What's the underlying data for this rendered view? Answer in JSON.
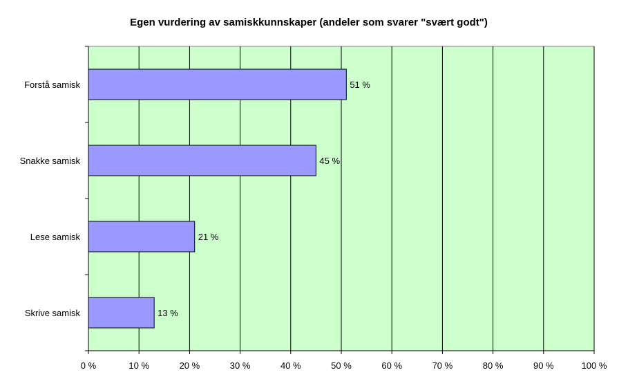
{
  "chart_data": {
    "type": "bar",
    "orientation": "horizontal",
    "title": "Egen vurdering av samiskkunnskaper (andeler som svarer \"svært godt\")",
    "xlabel": "",
    "ylabel": "",
    "categories": [
      "Forstå samisk",
      "Snakke samisk",
      "Lese samisk",
      "Skrive samisk"
    ],
    "values": [
      51,
      45,
      21,
      13
    ],
    "data_labels": [
      "51 %",
      "45 %",
      "21 %",
      "13 %"
    ],
    "xlim": [
      0,
      100
    ],
    "x_ticks": [
      0,
      10,
      20,
      30,
      40,
      50,
      60,
      70,
      80,
      90,
      100
    ],
    "x_tick_labels": [
      "0 %",
      "10 %",
      "20 %",
      "30 %",
      "40 %",
      "50 %",
      "60 %",
      "70 %",
      "80 %",
      "90 %",
      "100 %"
    ],
    "grid": "vertical",
    "legend": "none",
    "colors": {
      "bar_fill": "#9999ff",
      "bar_stroke": "#000000",
      "plot_background": "#ccffcc",
      "gridline": "#000000"
    }
  }
}
